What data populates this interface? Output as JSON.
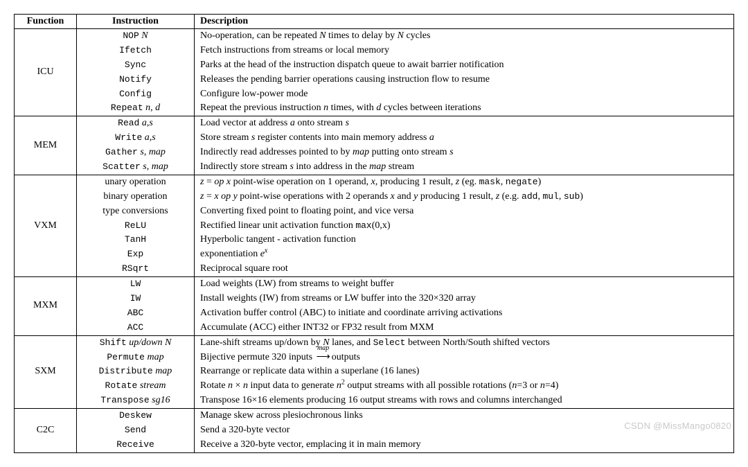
{
  "headers": {
    "fn": "Function",
    "ins": "Instruction",
    "desc": "Description"
  },
  "watermark": "CSDN @MissMango0820",
  "groups": [
    {
      "fn": "ICU",
      "rows": [
        {
          "ins_html": "<span class='tt'>NOP</span> <span class='it'>N</span>",
          "desc_html": "No-operation, can be repeated <span class='it'>N</span> times to delay by <span class='it'>N</span> cycles"
        },
        {
          "ins_html": "<span class='tt'>Ifetch</span>",
          "desc_html": "Fetch instructions from streams or local memory"
        },
        {
          "ins_html": "<span class='tt'>Sync</span>",
          "desc_html": "Parks at the head of the instruction dispatch queue to await barrier notification"
        },
        {
          "ins_html": "<span class='tt'>Notify</span>",
          "desc_html": "Releases the pending barrier operations causing instruction flow to resume"
        },
        {
          "ins_html": "<span class='tt'>Config</span>",
          "desc_html": "Configure low-power mode"
        },
        {
          "ins_html": "<span class='tt'>Repeat</span> <span class='it'>n</span>, <span class='it'>d</span>",
          "desc_html": "Repeat the previous instruction <span class='it'>n</span> times, with <span class='it'>d</span> cycles between iterations"
        }
      ]
    },
    {
      "fn": "MEM",
      "rows": [
        {
          "ins_html": "<span class='tt'>Read</span> <span class='it'>a</span>,<span class='it'>s</span>",
          "desc_html": "Load vector at address <span class='it'>a</span> onto stream <span class='it'>s</span>"
        },
        {
          "ins_html": "<span class='tt'>Write</span> <span class='it'>a</span>,<span class='it'>s</span>",
          "desc_html": "Store stream <span class='it'>s</span> register contents into main memory address <span class='it'>a</span>"
        },
        {
          "ins_html": "<span class='tt'>Gather</span> <span class='it'>s</span>, <span class='it'>map</span>",
          "desc_html": "Indirectly read addresses pointed to by <span class='it'>map</span> putting onto stream <span class='it'>s</span>"
        },
        {
          "ins_html": "<span class='tt'>Scatter</span> <span class='it'>s</span>, <span class='it'>map</span>",
          "desc_html": "Indirectly store stream <span class='it'>s</span> into address in the <span class='it'>map</span> stream"
        }
      ]
    },
    {
      "fn": "VXM",
      "rows": [
        {
          "ins_html": "unary operation",
          "desc_html": "<span class='it'>z</span> = <span class='it'>op x</span> point-wise operation on 1 operand, <span class='it'>x</span>, producing 1 result, <span class='it'>z</span> (eg. <span class='tt'>mask</span>, <span class='tt'>negate</span>)"
        },
        {
          "ins_html": "binary operation",
          "desc_html": "<span class='it'>z</span> = <span class='it'>x op y</span> point-wise operations with 2 operands <span class='it'>x</span> and <span class='it'>y</span> producing 1 result, <span class='it'>z</span> (e.g. <span class='tt'>add</span>, <span class='tt'>mul</span>, <span class='tt'>sub</span>)"
        },
        {
          "ins_html": "type conversions",
          "desc_html": "Converting fixed point to floating point, and vice versa"
        },
        {
          "ins_html": "<span class='tt'>ReLU</span>",
          "desc_html": "Rectified linear unit activation function <span class='tt'>max</span>(0,x)"
        },
        {
          "ins_html": "<span class='tt'>TanH</span>",
          "desc_html": "Hyperbolic tangent - activation function"
        },
        {
          "ins_html": "<span class='tt'>Exp</span>",
          "desc_html": "exponentiation <span class='it'>e</span><sup><span class='it'>x</span></sup>"
        },
        {
          "ins_html": "<span class='tt'>RSqrt</span>",
          "desc_html": "Reciprocal square root"
        }
      ]
    },
    {
      "fn": "MXM",
      "rows": [
        {
          "ins_html": "<span class='tt'>LW</span>",
          "desc_html": "Load weights (LW) from streams to weight buffer"
        },
        {
          "ins_html": "<span class='tt'>IW</span>",
          "desc_html": "Install weights (IW) from streams or LW buffer into the 320×320 array"
        },
        {
          "ins_html": "<span class='tt'>ABC</span>",
          "desc_html": "Activation buffer control (ABC) to initiate and coordinate arriving activations"
        },
        {
          "ins_html": "<span class='tt'>ACC</span>",
          "desc_html": "Accumulate (ACC) either INT32 or FP32 result from MXM"
        }
      ]
    },
    {
      "fn": "SXM",
      "rows": [
        {
          "ins_html": "<span class='tt'>Shift</span> <span class='it'>up/down N</span>",
          "desc_html": "Lane-shift streams up/down by <span class='it'>N</span> lanes, and <span class='tt'>Select</span> between North/South shifted vectors"
        },
        {
          "ins_html": "<span class='tt'>Permute</span> <span class='it'>map</span>",
          "desc_html": "Bijective permute 320 inputs <span class='over-arrow' data-label='map'>&#10230;</span>outputs"
        },
        {
          "ins_html": "<span class='tt'>Distribute</span> <span class='it'>map</span>",
          "desc_html": "Rearrange or replicate data within a superlane (16 lanes)"
        },
        {
          "ins_html": "<span class='tt'>Rotate</span> <span class='it'>stream</span>",
          "desc_html": "Rotate <span class='it'>n</span> × <span class='it'>n</span> input data to generate <span class='it'>n</span><sup>2</sup> output streams with all possible rotations (<span class='it'>n</span>=3 or <span class='it'>n</span>=4)"
        },
        {
          "ins_html": "<span class='tt'>Transpose</span> <span class='it'>sg16</span>",
          "desc_html": "Transpose 16×16 elements producing 16 output streams with rows and columns interchanged"
        }
      ]
    },
    {
      "fn": "C2C",
      "rows": [
        {
          "ins_html": "<span class='tt'>Deskew</span>",
          "desc_html": "Manage skew across plesiochronous links"
        },
        {
          "ins_html": "<span class='tt'>Send</span>",
          "desc_html": "Send a 320-byte vector"
        },
        {
          "ins_html": "<span class='tt'>Receive</span>",
          "desc_html": "Receive a 320-byte vector, emplacing it in main memory"
        }
      ]
    }
  ]
}
